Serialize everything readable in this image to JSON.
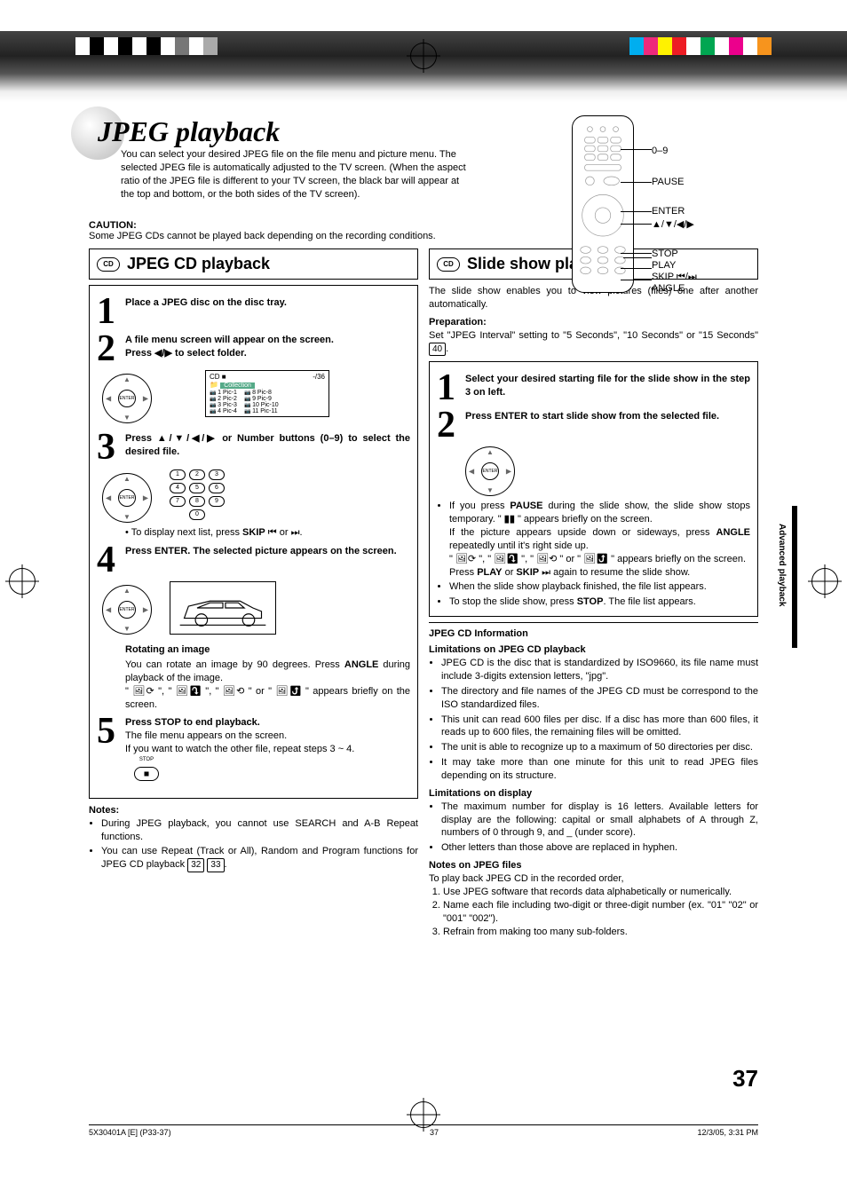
{
  "top_colors_left": [
    "#ffffff",
    "#000000",
    "#ffffff",
    "#000000",
    "#ffffff",
    "#000000",
    "#ffffff",
    "#777777",
    "#ffffff",
    "#aaaaaa"
  ],
  "top_colors_right": [
    "#00aeef",
    "#ee2a7b",
    "#fff200",
    "#ed1c24",
    "#ffffff",
    "#00a651",
    "#ffffff",
    "#ec008c",
    "#ffffff",
    "#f7941d"
  ],
  "page": {
    "title": "JPEG playback",
    "intro": "You can select your desired JPEG file on the file menu and picture menu. The selected JPEG file is automatically adjusted to the TV screen. (When the aspect ratio of the JPEG file is different to your TV screen, the black bar will appear at the top and bottom, or the both sides of the TV screen).",
    "caution_h": "CAUTION:",
    "caution_t": "Some JPEG CDs cannot be played back depending on the recording conditions."
  },
  "remote": {
    "labels": [
      "0–9",
      "PAUSE",
      "ENTER",
      "▲/▼/◀/▶",
      "STOP",
      "PLAY",
      "SKIP ⏮/⏭",
      "ANGLE"
    ]
  },
  "left": {
    "section_title": "JPEG CD playback",
    "disc_label": "CD",
    "s1": "Place a JPEG disc on the disc tray.",
    "s2a": "A file menu screen will appear on the screen.",
    "s2b": "Press ◀/▶ to select folder.",
    "filemenu": {
      "hdr_left": "CD ■",
      "hdr_right": "-/36",
      "folder": "Collection",
      "colA": [
        "1  Pic-1",
        "2  Pic-2",
        "3  Pic-3",
        "4  Pic-4"
      ],
      "colB": [
        "8  Pic-8",
        "9  Pic-9",
        "10 Pic-10",
        "11 Pic-11"
      ]
    },
    "s3": "Press ▲/▼/◀/▶ or Number buttons (0–9) to select the desired file.",
    "s3_tip_pre": "• To display next list, press ",
    "s3_tip_bold": "SKIP",
    "s3_tip_post": " ⏮ or ⏭.",
    "s4": "Press ENTER. The selected picture appears on the screen.",
    "rot_h": "Rotating an image",
    "rot_p1": "You can rotate an image by 90 degrees. Press ",
    "rot_bold": "ANGLE",
    "rot_p2": " during playback of the image.",
    "rot_icons": "\" 🖼⟳ \", \" 🖼⤵ \", \" 🖼⟲ \" or \" 🖼⤴ \" appears briefly on the screen.",
    "s5a": "Press STOP to end playback.",
    "s5b": "The file menu appears on the screen.",
    "s5c": "If you want to watch the other file, repeat steps 3 ~ 4.",
    "stop_label": "STOP",
    "notes_h": "Notes:",
    "note1": "During JPEG playback, you cannot use SEARCH and A-B Repeat functions.",
    "note2_pre": "You can use Repeat (Track or All), Random and Program functions for JPEG CD playback ",
    "note2_ref1": "32",
    "note2_ref2": "33"
  },
  "right": {
    "section_title": "Slide show playback",
    "intro": "The slide show enables you to view pictures (files) one after another automatically.",
    "prep_h": "Preparation:",
    "prep_t_pre": "Set \"JPEG Interval\" setting to \"5 Seconds\", \"10 Seconds\" or \"15 Seconds\" ",
    "prep_ref": "40",
    "s1": "Select your desired starting file for the slide show in the step 3 on left.",
    "s2": "Press ENTER to start slide show from the selected file.",
    "b1_pre": "If you press ",
    "b1_bold": "PAUSE",
    "b1_mid": " during the slide show, the slide show stops temporary. \" ",
    "b1_sym": "▮▮",
    "b1_post": " \" appears briefly on the screen.",
    "b1_l2_pre": "If the picture appears upside down or sideways, press ",
    "b1_l2_bold": "ANGLE",
    "b1_l2_post": " repeatedly until it's right side up.",
    "b1_l3": "\" 🖼⟳ \", \" 🖼⤵ \", \" 🖼⟲ \" or \" 🖼⤴ \" appears briefly on the screen.",
    "b1_l4_pre": "Press ",
    "b1_l4_b1": "PLAY",
    "b1_l4_mid": " or ",
    "b1_l4_b2": "SKIP",
    "b1_l4_post": " ⏭ again to resume the slide show.",
    "b2": "When the slide show playback finished, the file list appears.",
    "b3_pre": "To stop the slide show, press ",
    "b3_bold": "STOP",
    "b3_post": ". The file list appears.",
    "info_h": "JPEG CD Information",
    "lim1_h": "Limitations on JPEG CD playback",
    "lim1": [
      "JPEG CD is the disc that is standardized by ISO9660, its file name must include 3-digits extension letters, \"jpg\".",
      "The directory and file names of the JPEG CD must be correspond to the ISO standardized files.",
      "This unit can read 600 files per disc. If a disc has more than 600 files, it reads up to 600 files, the remaining files will be omitted.",
      "The unit is able to recognize up to a maximum of 50 directories per disc.",
      "It may take more than one minute for this unit to read JPEG files depending on its structure."
    ],
    "lim2_h": "Limitations on display",
    "lim2": [
      "The maximum number for display is 16 letters. Available letters for display are the following: capital or small alphabets of A through Z, numbers of 0 through 9, and _ (under score).",
      "Other letters than those above are replaced in hyphen."
    ],
    "nof_h": "Notes on JPEG files",
    "nof_p": "To play back JPEG CD in the recorded order,",
    "nof": [
      "Use JPEG software that records data alphabetically or numerically.",
      "Name each file including two-digit or three-digit number (ex. \"01\" \"02\" or \"001\" \"002\").",
      "Refrain from making too many sub-folders."
    ]
  },
  "side_tab": "Advanced playback",
  "page_num": "37",
  "footer": {
    "left": "5X30401A [E] (P33-37)",
    "mid": "37",
    "right": "12/3/05, 3:31 PM"
  }
}
